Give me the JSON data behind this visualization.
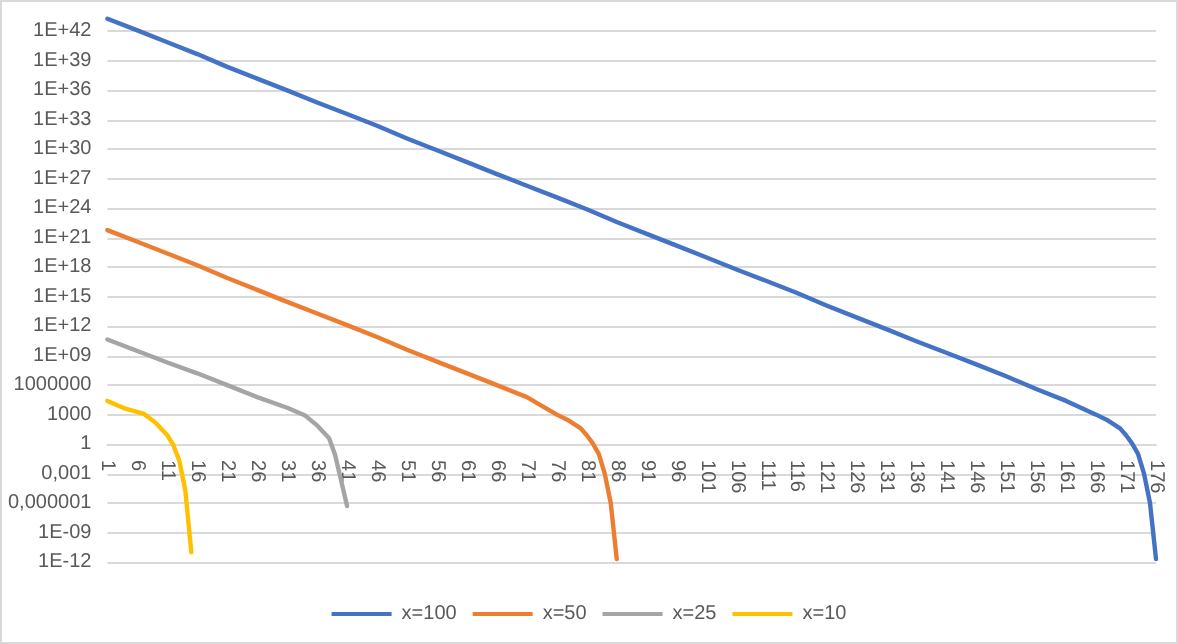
{
  "chart_data": {
    "type": "line",
    "log": "y",
    "grid": "y",
    "legend": "bottom",
    "marker": "none",
    "line_style": "solid",
    "xlim": [
      1,
      176
    ],
    "xticks": [
      1,
      6,
      11,
      16,
      21,
      26,
      31,
      36,
      41,
      46,
      51,
      56,
      61,
      66,
      71,
      76,
      81,
      86,
      91,
      96,
      101,
      106,
      111,
      116,
      121,
      126,
      131,
      136,
      141,
      146,
      151,
      156,
      161,
      166,
      171,
      176
    ],
    "ylim": [
      1e-12,
      1e+45
    ],
    "yticks": [
      {
        "value": 1e-12,
        "label": "1E-12"
      },
      {
        "value": 1e-09,
        "label": "1E-09"
      },
      {
        "value": 1e-06,
        "label": "0,000001"
      },
      {
        "value": 0.001,
        "label": "0,001"
      },
      1,
      1000,
      1000000,
      {
        "value": 1000000000.0,
        "label": "1E+09"
      },
      {
        "value": 1000000000000.0,
        "label": "1E+12"
      },
      {
        "value": 1000000000000000.0,
        "label": "1E+15"
      },
      {
        "value": 1e+18,
        "label": "1E+18"
      },
      {
        "value": 1e+21,
        "label": "1E+21"
      },
      {
        "value": 1e+24,
        "label": "1E+24"
      },
      {
        "value": 1e+27,
        "label": "1E+27"
      },
      {
        "value": 1e+30,
        "label": "1E+30"
      },
      {
        "value": 1e+33,
        "label": "1E+33"
      },
      {
        "value": 1e+36,
        "label": "1E+36"
      },
      {
        "value": 1e+39,
        "label": "1E+39"
      },
      {
        "value": 1e+42,
        "label": "1E+42"
      }
    ],
    "series": [
      {
        "name": "x=100",
        "color": "#4472c4",
        "x": [
          1,
          6,
          11,
          16,
          21,
          26,
          31,
          36,
          41,
          46,
          51,
          56,
          61,
          66,
          71,
          76,
          81,
          86,
          91,
          96,
          101,
          106,
          111,
          116,
          121,
          126,
          131,
          136,
          141,
          146,
          151,
          156,
          161,
          166,
          168,
          170,
          171,
          172,
          173,
          174,
          175,
          176
        ],
        "values": [
          2e+43,
          1.3e+42,
          8e+40,
          5e+39,
          2.5e+38,
          1.6e+37,
          1e+36,
          6e+34,
          4e+33,
          2.5e+32,
          1.3e+31,
          8e+29,
          5e+28,
          3e+27,
          2e+26,
          1.3e+25,
          8e+23,
          4e+22,
          2.5e+21,
          1.6e+20,
          1e+19,
          6e+17,
          4e+16,
          2500000000000000.0,
          130000000000000.0,
          8000000000000.0,
          500000000000.0,
          30000000000.0,
          2000000000.0,
          130000000.0,
          8000000.0,
          400000.0,
          25000.0,
          1000,
          250,
          40,
          8,
          1.2,
          0.1,
          0.001,
          1e-06,
          2e-12
        ]
      },
      {
        "name": "x=50",
        "color": "#ed7d31",
        "x": [
          1,
          6,
          11,
          16,
          21,
          26,
          31,
          36,
          41,
          46,
          51,
          56,
          61,
          66,
          71,
          76,
          78,
          80,
          81,
          82,
          83,
          84,
          85,
          86
        ],
        "values": [
          6e+21,
          4e+20,
          2.5e+19,
          1.6e+18,
          8e+16,
          5000000000000000.0,
          300000000000000.0,
          20000000000000.0,
          1300000000000.0,
          80000000000.0,
          4000000000.0,
          250000000.0,
          16000000.0,
          1000000.0,
          60000.0,
          1000,
          250,
          40,
          8,
          1.2,
          0.1,
          0.001,
          1e-06,
          2e-12
        ]
      },
      {
        "name": "x=25",
        "color": "#a5a5a5",
        "x": [
          1,
          6,
          11,
          16,
          21,
          26,
          31,
          34,
          36,
          38,
          39,
          40,
          41
        ],
        "values": [
          45000000000.0,
          3000000000.0,
          200000000.0,
          16000000.0,
          1000000.0,
          60000.0,
          5000,
          800,
          80,
          4,
          0.08,
          0.0002,
          5e-07
        ]
      },
      {
        "name": "x=10",
        "color": "#ffc000",
        "x": [
          1,
          4,
          7,
          9,
          11,
          12,
          13,
          14,
          15
        ],
        "values": [
          25000.0,
          4000,
          1300,
          160,
          8,
          0.8,
          0.02,
          2e-05,
          1e-11
        ]
      }
    ]
  }
}
